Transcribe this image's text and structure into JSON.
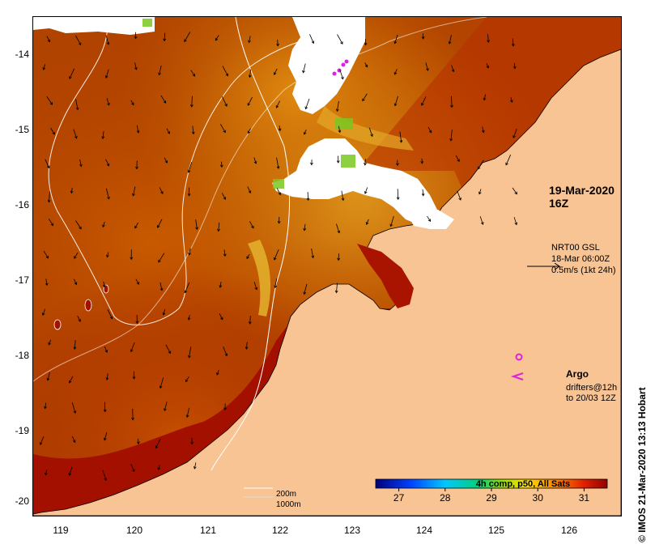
{
  "map": {
    "region": "North-west Australian shelf, SST",
    "y_axis_labels": [
      "-14",
      "-15",
      "-16",
      "-17",
      "-18",
      "-19",
      "-20"
    ],
    "x_axis_labels": [
      "119",
      "120",
      "121",
      "122",
      "123",
      "124",
      "125",
      "126"
    ],
    "timestamp_label": "19-Mar-2020 16Z",
    "current_product": {
      "line1": "NRT00 GSL",
      "line2": "18-Mar 06:00Z",
      "line3": "0.5m/s (1kt 24h)"
    },
    "legend": {
      "argo_label": "Argo",
      "drifters_line1": "drifters@12h",
      "drifters_line2": "to 20/03 12Z"
    },
    "scale": {
      "contour_200": "200m",
      "contour_1000": "1000m"
    },
    "colorbar": {
      "title": "4h comp, p50, All Sats",
      "ticks": [
        "27",
        "28",
        "29",
        "30",
        "31"
      ],
      "range": [
        26.5,
        31.5
      ]
    },
    "credit": "© IMOS 21-Mar-2020 13:13 Hobart",
    "colors": {
      "land": "#f9c493",
      "sst_warm": "#a01000",
      "sst_mid": "#cc5a00",
      "sst_cool": "#e08a10",
      "cloud": "#ffffff",
      "argo": "#e020e0"
    }
  }
}
